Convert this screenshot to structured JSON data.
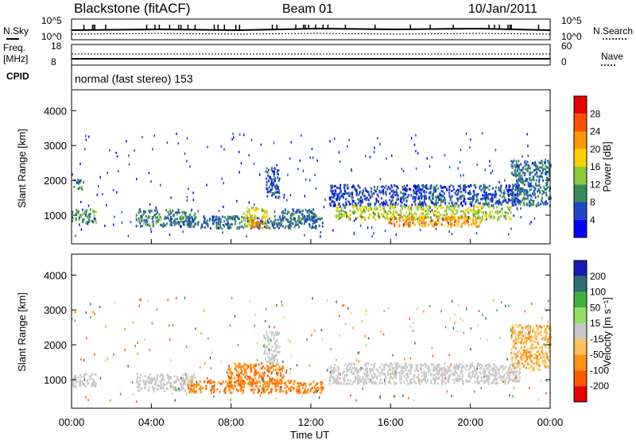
{
  "header": {
    "station": "Blackstone (fitACF)",
    "beam": "Beam 01",
    "date": "10/Jan/2011"
  },
  "top_panels": {
    "nsky_label": "N.Sky",
    "nsky_ticks": [
      "10^5",
      "10^0"
    ],
    "nsearch_label": "N.Search",
    "nsearch_ticks": [
      "10^5",
      "10^0"
    ],
    "freq_label": "Freq.",
    "freq_unit": "[MHz]",
    "freq_ticks": [
      "18",
      "8"
    ],
    "nave_label": "Nave",
    "nave_ticks": [
      "60",
      "0"
    ],
    "cpid_label": "CPID",
    "cpid_text": "normal (fast stereo) 153"
  },
  "colors": {
    "background": "#ffffff",
    "axis": "#000000",
    "gray_scatter": "#c0c0c0"
  },
  "chart_data": [
    {
      "type": "heatmap",
      "name": "power",
      "ylabel": "Slant Range [km]",
      "xlabel": "Time UT",
      "x_range_hours": [
        0,
        24
      ],
      "ylim": [
        180,
        4600
      ],
      "y_ticks": [
        1000,
        2000,
        3000,
        4000
      ],
      "x_ticks": [
        "00:00",
        "04:00",
        "08:00",
        "12:00",
        "16:00",
        "20:00",
        "00:00"
      ],
      "colorbar": {
        "label": "Power [dB]",
        "ticks": [
          "4",
          "8",
          "12",
          "16",
          "20",
          "24",
          "28"
        ],
        "levels": [
          0,
          4,
          8,
          12,
          16,
          20,
          24,
          28,
          30
        ],
        "colors": [
          "#0000ff",
          "#1f48c4",
          "#3a8c5a",
          "#8fca3a",
          "#ffd000",
          "#ff9800",
          "#ff5000",
          "#e60000"
        ]
      },
      "regions": [
        {
          "t": [
            0.0,
            1.2
          ],
          "r": [
            800,
            1200
          ],
          "level": 10
        },
        {
          "t": [
            0.1,
            0.6
          ],
          "r": [
            1750,
            2050
          ],
          "level": 9
        },
        {
          "t": [
            3.2,
            6.2
          ],
          "r": [
            700,
            1200
          ],
          "level": 9
        },
        {
          "t": [
            5.8,
            12.6
          ],
          "r": [
            650,
            1000
          ],
          "level": 8
        },
        {
          "t": [
            8.6,
            9.8
          ],
          "r": [
            700,
            1250
          ],
          "level": 16
        },
        {
          "t": [
            9.0,
            9.6
          ],
          "r": [
            650,
            900
          ],
          "level": 24
        },
        {
          "t": [
            9.7,
            10.4
          ],
          "r": [
            1500,
            2400
          ],
          "level": 7
        },
        {
          "t": [
            10.5,
            12.3
          ],
          "r": [
            800,
            1200
          ],
          "level": 9
        },
        {
          "t": [
            12.9,
            22.5
          ],
          "r": [
            1300,
            1900
          ],
          "level": 6
        },
        {
          "t": [
            13.2,
            22.0
          ],
          "r": [
            900,
            1300
          ],
          "level": 15
        },
        {
          "t": [
            15.8,
            20.5
          ],
          "r": [
            700,
            1000
          ],
          "level": 22
        },
        {
          "t": [
            22.0,
            24.0
          ],
          "r": [
            1300,
            2600
          ],
          "level": 8
        }
      ]
    },
    {
      "type": "heatmap",
      "name": "velocity",
      "ylabel": "Slant Range [km]",
      "xlabel": "Time UT",
      "x_range_hours": [
        0,
        24
      ],
      "ylim": [
        180,
        4600
      ],
      "y_ticks": [
        1000,
        2000,
        3000,
        4000
      ],
      "x_ticks": [
        "00:00",
        "04:00",
        "08:00",
        "12:00",
        "16:00",
        "20:00",
        "00:00"
      ],
      "colorbar": {
        "label": "Velocity [m s⁻¹]",
        "ticks": [
          "200",
          "100",
          "50",
          "15",
          "-15",
          "-50",
          "-100",
          "-200"
        ],
        "colors": [
          "#1a1ab8",
          "#2f6f6f",
          "#3fb040",
          "#8fe060",
          "#c8c8c8",
          "#ffc060",
          "#ff9010",
          "#ff5a00",
          "#e80000"
        ]
      },
      "regions": [
        {
          "t": [
            0.0,
            1.2
          ],
          "r": [
            800,
            1200
          ],
          "velocity": 0
        },
        {
          "t": [
            3.2,
            6.2
          ],
          "r": [
            700,
            1200
          ],
          "velocity": 0
        },
        {
          "t": [
            5.8,
            12.6
          ],
          "r": [
            650,
            1000
          ],
          "velocity": -70
        },
        {
          "t": [
            7.8,
            10.6
          ],
          "r": [
            900,
            1500
          ],
          "velocity": -70
        },
        {
          "t": [
            9.6,
            10.4
          ],
          "r": [
            1500,
            2400
          ],
          "velocity": 0
        },
        {
          "t": [
            12.9,
            22.5
          ],
          "r": [
            900,
            1500
          ],
          "velocity": 0
        },
        {
          "t": [
            22.0,
            24.0
          ],
          "r": [
            1300,
            2600
          ],
          "velocity": -30
        }
      ]
    }
  ]
}
